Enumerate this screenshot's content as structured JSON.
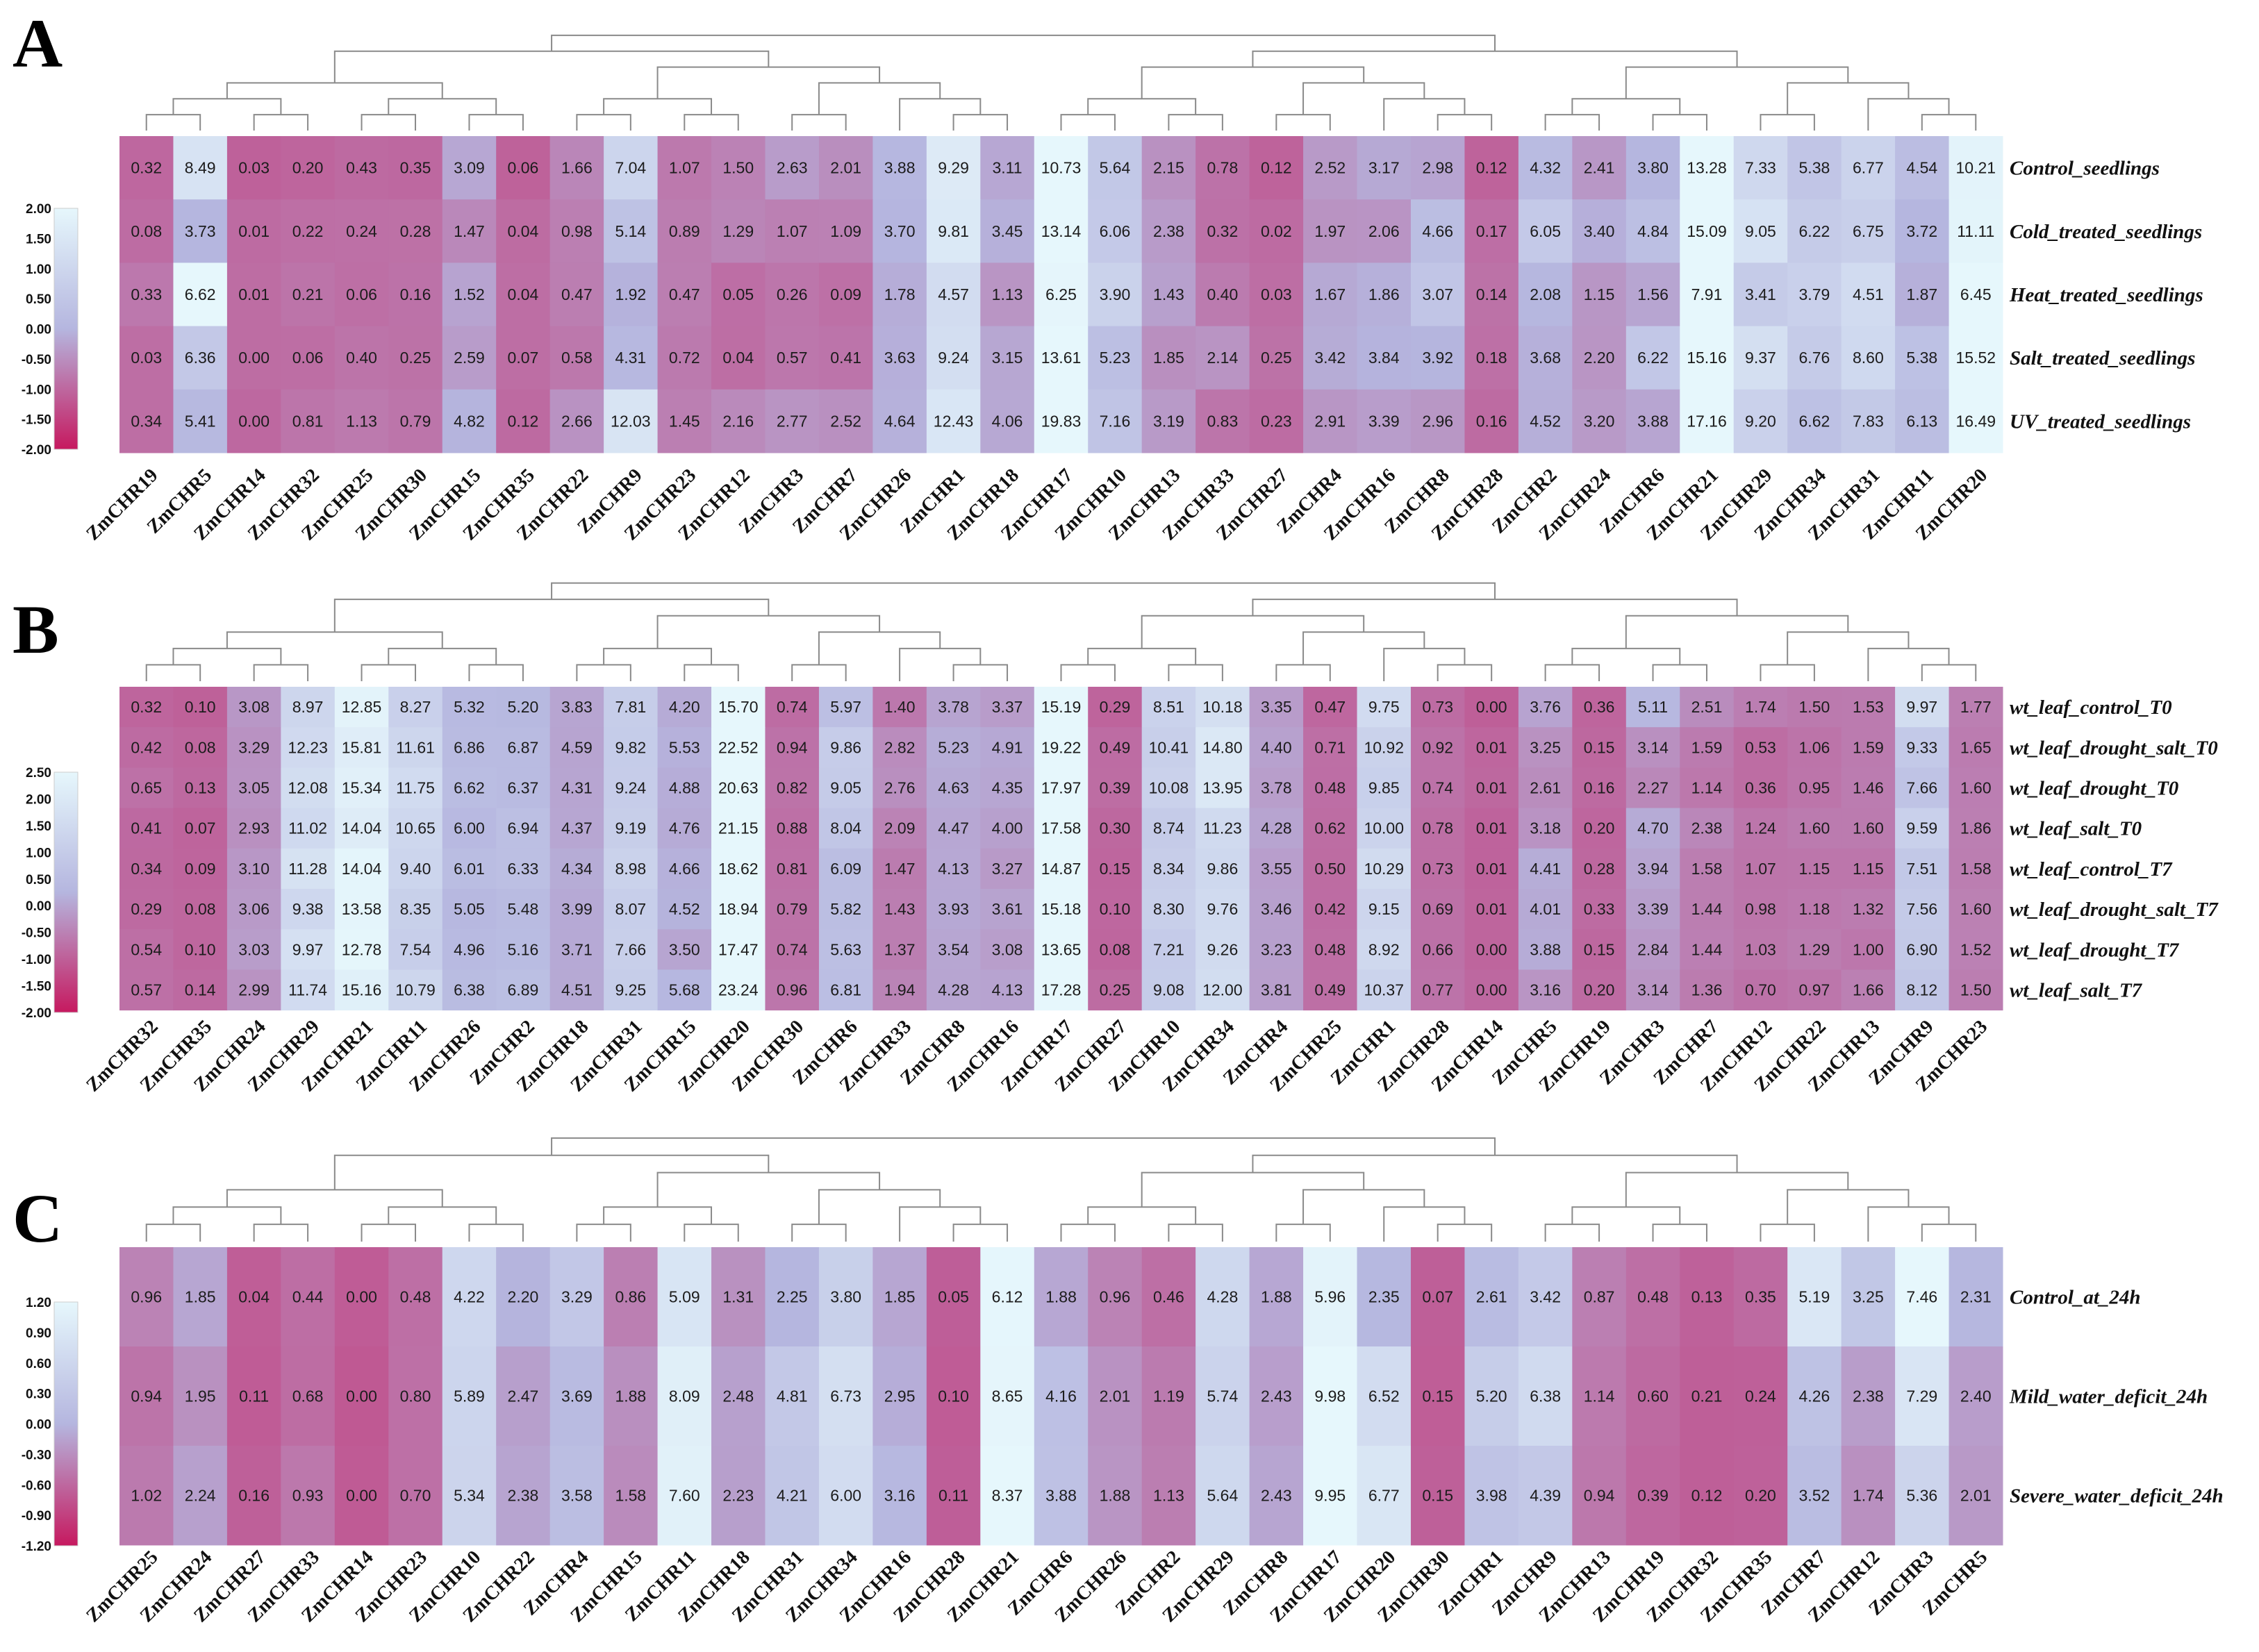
{
  "colors": {
    "low": "#c6195f",
    "mid": "#b5b6df",
    "high": "#e6f7fc"
  },
  "chart_data": [
    {
      "type": "heatmap",
      "panel": "A",
      "rows": [
        "Control_seedlings",
        "Cold_treated_seedlings",
        "Heat_treated_seedlings",
        "Salt_treated_seedlings",
        "UV_treated_seedlings"
      ],
      "columns": [
        "ZmCHR19",
        "ZmCHR5",
        "ZmCHR14",
        "ZmCHR32",
        "ZmCHR25",
        "ZmCHR30",
        "ZmCHR15",
        "ZmCHR35",
        "ZmCHR22",
        "ZmCHR9",
        "ZmCHR23",
        "ZmCHR12",
        "ZmCHR3",
        "ZmCHR7",
        "ZmCHR26",
        "ZmCHR1",
        "ZmCHR18",
        "ZmCHR17",
        "ZmCHR10",
        "ZmCHR13",
        "ZmCHR33",
        "ZmCHR27",
        "ZmCHR4",
        "ZmCHR16",
        "ZmCHR8",
        "ZmCHR28",
        "ZmCHR2",
        "ZmCHR24",
        "ZmCHR6",
        "ZmCHR21",
        "ZmCHR29",
        "ZmCHR34",
        "ZmCHR31",
        "ZmCHR11",
        "ZmCHR20"
      ],
      "values": [
        [
          "0.32",
          "8.49",
          "0.03",
          "0.20",
          "0.43",
          "0.35",
          "3.09",
          "0.06",
          "1.66",
          "7.04",
          "1.07",
          "1.50",
          "2.63",
          "2.01",
          "3.88",
          "9.29",
          "3.11",
          "10.73",
          "5.64",
          "2.15",
          "0.78",
          "0.12",
          "2.52",
          "3.17",
          "2.98",
          "0.12",
          "4.32",
          "2.41",
          "3.80",
          "13.28",
          "7.33",
          "5.38",
          "6.77",
          "4.54",
          "10.21"
        ],
        [
          "0.08",
          "3.73",
          "0.01",
          "0.22",
          "0.24",
          "0.28",
          "1.47",
          "0.04",
          "0.98",
          "5.14",
          "0.89",
          "1.29",
          "1.07",
          "1.09",
          "3.70",
          "9.81",
          "3.45",
          "13.14",
          "6.06",
          "2.38",
          "0.32",
          "0.02",
          "1.97",
          "2.06",
          "4.66",
          "0.17",
          "6.05",
          "3.40",
          "4.84",
          "15.09",
          "9.05",
          "6.22",
          "6.75",
          "3.72",
          "11.11"
        ],
        [
          "0.33",
          "6.62",
          "0.01",
          "0.21",
          "0.06",
          "0.16",
          "1.52",
          "0.04",
          "0.47",
          "1.92",
          "0.47",
          "0.05",
          "0.26",
          "0.09",
          "1.78",
          "4.57",
          "1.13",
          "6.25",
          "3.90",
          "1.43",
          "0.40",
          "0.03",
          "1.67",
          "1.86",
          "3.07",
          "0.14",
          "2.08",
          "1.15",
          "1.56",
          "7.91",
          "3.41",
          "3.79",
          "4.51",
          "1.87",
          "6.45"
        ],
        [
          "0.03",
          "6.36",
          "0.00",
          "0.06",
          "0.40",
          "0.25",
          "2.59",
          "0.07",
          "0.58",
          "4.31",
          "0.72",
          "0.04",
          "0.57",
          "0.41",
          "3.63",
          "9.24",
          "3.15",
          "13.61",
          "5.23",
          "1.85",
          "2.14",
          "0.25",
          "3.42",
          "3.84",
          "3.92",
          "0.18",
          "3.68",
          "2.20",
          "6.22",
          "15.16",
          "9.37",
          "6.76",
          "8.60",
          "5.38",
          "15.52"
        ],
        [
          "0.34",
          "5.41",
          "0.00",
          "0.81",
          "1.13",
          "0.79",
          "4.82",
          "0.12",
          "2.66",
          "12.03",
          "1.45",
          "2.16",
          "2.77",
          "2.52",
          "4.64",
          "12.43",
          "4.06",
          "19.83",
          "7.16",
          "3.19",
          "0.83",
          "0.23",
          "2.91",
          "3.39",
          "2.96",
          "0.16",
          "4.52",
          "3.20",
          "3.88",
          "17.16",
          "9.20",
          "6.62",
          "7.83",
          "6.13",
          "16.49"
        ]
      ],
      "color_scale": {
        "min": -2.0,
        "max": 2.0,
        "ticks": [
          "2.00",
          "1.50",
          "1.00",
          "0.50",
          "0.00",
          "-0.50",
          "-1.00",
          "-1.50",
          "-2.00"
        ]
      }
    },
    {
      "type": "heatmap",
      "panel": "B",
      "rows": [
        "wt_leaf_control_T0",
        "wt_leaf_drought_salt_T0",
        "wt_leaf_drought_T0",
        "wt_leaf_salt_T0",
        "wt_leaf_control_T7",
        "wt_leaf_drought_salt_T7",
        "wt_leaf_drought_T7",
        "wt_leaf_salt_T7"
      ],
      "columns": [
        "ZmCHR32",
        "ZmCHR35",
        "ZmCHR24",
        "ZmCHR29",
        "ZmCHR21",
        "ZmCHR11",
        "ZmCHR26",
        "ZmCHR2",
        "ZmCHR18",
        "ZmCHR31",
        "ZmCHR15",
        "ZmCHR20",
        "ZmCHR30",
        "ZmCHR6",
        "ZmCHR33",
        "ZmCHR8",
        "ZmCHR16",
        "ZmCHR17",
        "ZmCHR27",
        "ZmCHR10",
        "ZmCHR34",
        "ZmCHR4",
        "ZmCHR25",
        "ZmCHR1",
        "ZmCHR28",
        "ZmCHR14",
        "ZmCHR5",
        "ZmCHR19",
        "ZmCHR3",
        "ZmCHR7",
        "ZmCHR12",
        "ZmCHR22",
        "ZmCHR13",
        "ZmCHR9",
        "ZmCHR23"
      ],
      "values": [
        [
          "0.32",
          "0.10",
          "3.08",
          "8.97",
          "12.85",
          "8.27",
          "5.32",
          "5.20",
          "3.83",
          "7.81",
          "4.20",
          "15.70",
          "0.74",
          "5.97",
          "1.40",
          "3.78",
          "3.37",
          "15.19",
          "0.29",
          "8.51",
          "10.18",
          "3.35",
          "0.47",
          "9.75",
          "0.73",
          "0.00",
          "3.76",
          "0.36",
          "5.11",
          "2.51",
          "1.74",
          "1.50",
          "1.53",
          "9.97",
          "1.77"
        ],
        [
          "0.42",
          "0.08",
          "3.29",
          "12.23",
          "15.81",
          "11.61",
          "6.86",
          "6.87",
          "4.59",
          "9.82",
          "5.53",
          "22.52",
          "0.94",
          "9.86",
          "2.82",
          "5.23",
          "4.91",
          "19.22",
          "0.49",
          "10.41",
          "14.80",
          "4.40",
          "0.71",
          "10.92",
          "0.92",
          "0.01",
          "3.25",
          "0.15",
          "3.14",
          "1.59",
          "0.53",
          "1.06",
          "1.59",
          "9.33",
          "1.65"
        ],
        [
          "0.65",
          "0.13",
          "3.05",
          "12.08",
          "15.34",
          "11.75",
          "6.62",
          "6.37",
          "4.31",
          "9.24",
          "4.88",
          "20.63",
          "0.82",
          "9.05",
          "2.76",
          "4.63",
          "4.35",
          "17.97",
          "0.39",
          "10.08",
          "13.95",
          "3.78",
          "0.48",
          "9.85",
          "0.74",
          "0.01",
          "2.61",
          "0.16",
          "2.27",
          "1.14",
          "0.36",
          "0.95",
          "1.46",
          "7.66",
          "1.60"
        ],
        [
          "0.41",
          "0.07",
          "2.93",
          "11.02",
          "14.04",
          "10.65",
          "6.00",
          "6.94",
          "4.37",
          "9.19",
          "4.76",
          "21.15",
          "0.88",
          "8.04",
          "2.09",
          "4.47",
          "4.00",
          "17.58",
          "0.30",
          "8.74",
          "11.23",
          "4.28",
          "0.62",
          "10.00",
          "0.78",
          "0.01",
          "3.18",
          "0.20",
          "4.70",
          "2.38",
          "1.24",
          "1.60",
          "1.60",
          "9.59",
          "1.86"
        ],
        [
          "0.34",
          "0.09",
          "3.10",
          "11.28",
          "14.04",
          "9.40",
          "6.01",
          "6.33",
          "4.34",
          "8.98",
          "4.66",
          "18.62",
          "0.81",
          "6.09",
          "1.47",
          "4.13",
          "3.27",
          "14.87",
          "0.15",
          "8.34",
          "9.86",
          "3.55",
          "0.50",
          "10.29",
          "0.73",
          "0.01",
          "4.41",
          "0.28",
          "3.94",
          "1.58",
          "1.07",
          "1.15",
          "1.15",
          "7.51",
          "1.58"
        ],
        [
          "0.29",
          "0.08",
          "3.06",
          "9.38",
          "13.58",
          "8.35",
          "5.05",
          "5.48",
          "3.99",
          "8.07",
          "4.52",
          "18.94",
          "0.79",
          "5.82",
          "1.43",
          "3.93",
          "3.61",
          "15.18",
          "0.10",
          "8.30",
          "9.76",
          "3.46",
          "0.42",
          "9.15",
          "0.69",
          "0.01",
          "4.01",
          "0.33",
          "3.39",
          "1.44",
          "0.98",
          "1.18",
          "1.32",
          "7.56",
          "1.60"
        ],
        [
          "0.54",
          "0.10",
          "3.03",
          "9.97",
          "12.78",
          "7.54",
          "4.96",
          "5.16",
          "3.71",
          "7.66",
          "3.50",
          "17.47",
          "0.74",
          "5.63",
          "1.37",
          "3.54",
          "3.08",
          "13.65",
          "0.08",
          "7.21",
          "9.26",
          "3.23",
          "0.48",
          "8.92",
          "0.66",
          "0.00",
          "3.88",
          "0.15",
          "2.84",
          "1.44",
          "1.03",
          "1.29",
          "1.00",
          "6.90",
          "1.52"
        ],
        [
          "0.57",
          "0.14",
          "2.99",
          "11.74",
          "15.16",
          "10.79",
          "6.38",
          "6.89",
          "4.51",
          "9.25",
          "5.68",
          "23.24",
          "0.96",
          "6.81",
          "1.94",
          "4.28",
          "4.13",
          "17.28",
          "0.25",
          "9.08",
          "12.00",
          "3.81",
          "0.49",
          "10.37",
          "0.77",
          "0.00",
          "3.16",
          "0.20",
          "3.14",
          "1.36",
          "0.70",
          "0.97",
          "1.66",
          "8.12",
          "1.50"
        ]
      ],
      "color_scale": {
        "min": -2.0,
        "max": 2.5,
        "ticks": [
          "2.50",
          "2.00",
          "1.50",
          "1.00",
          "0.50",
          "0.00",
          "-0.50",
          "-1.00",
          "-1.50",
          "-2.00"
        ]
      }
    },
    {
      "type": "heatmap",
      "panel": "C",
      "rows": [
        "Control_at_24h",
        "Mild_water_deficit_24h",
        "Severe_water_deficit_24h"
      ],
      "columns": [
        "ZmCHR25",
        "ZmCHR24",
        "ZmCHR27",
        "ZmCHR33",
        "ZmCHR14",
        "ZmCHR23",
        "ZmCHR10",
        "ZmCHR22",
        "ZmCHR4",
        "ZmCHR15",
        "ZmCHR11",
        "ZmCHR18",
        "ZmCHR31",
        "ZmCHR34",
        "ZmCHR16",
        "ZmCHR28",
        "ZmCHR21",
        "ZmCHR6",
        "ZmCHR26",
        "ZmCHR2",
        "ZmCHR29",
        "ZmCHR8",
        "ZmCHR17",
        "ZmCHR20",
        "ZmCHR30",
        "ZmCHR1",
        "ZmCHR9",
        "ZmCHR13",
        "ZmCHR19",
        "ZmCHR32",
        "ZmCHR35",
        "ZmCHR7",
        "ZmCHR12",
        "ZmCHR3",
        "ZmCHR5"
      ],
      "values": [
        [
          "0.96",
          "1.85",
          "0.04",
          "0.44",
          "0.00",
          "0.48",
          "4.22",
          "2.20",
          "3.29",
          "0.86",
          "5.09",
          "1.31",
          "2.25",
          "3.80",
          "1.85",
          "0.05",
          "6.12",
          "1.88",
          "0.96",
          "0.46",
          "4.28",
          "1.88",
          "5.96",
          "2.35",
          "0.07",
          "2.61",
          "3.42",
          "0.87",
          "0.48",
          "0.13",
          "0.35",
          "5.19",
          "3.25",
          "7.46",
          "2.31"
        ],
        [
          "0.94",
          "1.95",
          "0.11",
          "0.68",
          "0.00",
          "0.80",
          "5.89",
          "2.47",
          "3.69",
          "1.88",
          "8.09",
          "2.48",
          "4.81",
          "6.73",
          "2.95",
          "0.10",
          "8.65",
          "4.16",
          "2.01",
          "1.19",
          "5.74",
          "2.43",
          "9.98",
          "6.52",
          "0.15",
          "5.20",
          "6.38",
          "1.14",
          "0.60",
          "0.21",
          "0.24",
          "4.26",
          "2.38",
          "7.29",
          "2.40"
        ],
        [
          "1.02",
          "2.24",
          "0.16",
          "0.93",
          "0.00",
          "0.70",
          "5.34",
          "2.38",
          "3.58",
          "1.58",
          "7.60",
          "2.23",
          "4.21",
          "6.00",
          "3.16",
          "0.11",
          "8.37",
          "3.88",
          "1.88",
          "1.13",
          "5.64",
          "2.43",
          "9.95",
          "6.77",
          "0.15",
          "3.98",
          "4.39",
          "0.94",
          "0.39",
          "0.12",
          "0.20",
          "3.52",
          "1.74",
          "5.36",
          "2.01"
        ]
      ],
      "color_scale": {
        "min": -1.2,
        "max": 1.2,
        "ticks": [
          "1.20",
          "0.90",
          "0.60",
          "0.30",
          "0.00",
          "-0.30",
          "-0.60",
          "-0.90",
          "-1.20"
        ]
      }
    }
  ]
}
